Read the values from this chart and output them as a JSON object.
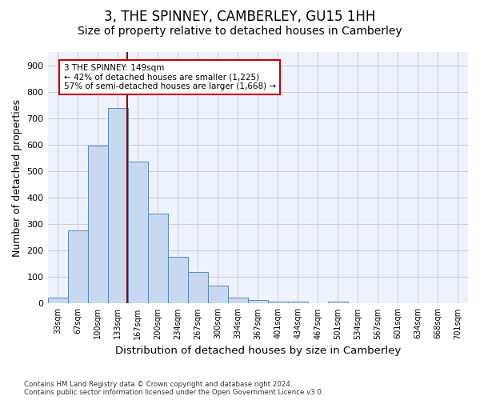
{
  "title": "3, THE SPINNEY, CAMBERLEY, GU15 1HH",
  "subtitle": "Size of property relative to detached houses in Camberley",
  "xlabel": "Distribution of detached houses by size in Camberley",
  "ylabel": "Number of detached properties",
  "bar_values": [
    22,
    275,
    595,
    740,
    535,
    340,
    178,
    118,
    68,
    22,
    12,
    8,
    8,
    2,
    8,
    0,
    0,
    0,
    0,
    0,
    0
  ],
  "categories": [
    "33sqm",
    "67sqm",
    "100sqm",
    "133sqm",
    "167sqm",
    "200sqm",
    "234sqm",
    "267sqm",
    "300sqm",
    "334sqm",
    "367sqm",
    "401sqm",
    "434sqm",
    "467sqm",
    "501sqm",
    "534sqm",
    "567sqm",
    "601sqm",
    "634sqm",
    "668sqm",
    "701sqm"
  ],
  "bar_color": "#c8d8ee",
  "bar_edge_color": "#5a8abf",
  "vline_color": "#8b0000",
  "annotation_text": "3 THE SPINNEY: 149sqm\n← 42% of detached houses are smaller (1,225)\n57% of semi-detached houses are larger (1,668) →",
  "ylim": [
    0,
    950
  ],
  "yticks": [
    0,
    100,
    200,
    300,
    400,
    500,
    600,
    700,
    800,
    900
  ],
  "background_color": "#ffffff",
  "plot_bg_color": "#eef2fb",
  "grid_color": "#cccccc",
  "footer_line1": "Contains HM Land Registry data © Crown copyright and database right 2024.",
  "footer_line2": "Contains public sector information licensed under the Open Government Licence v3.0.",
  "title_fontsize": 12,
  "subtitle_fontsize": 10,
  "xlabel_fontsize": 9.5,
  "ylabel_fontsize": 9
}
